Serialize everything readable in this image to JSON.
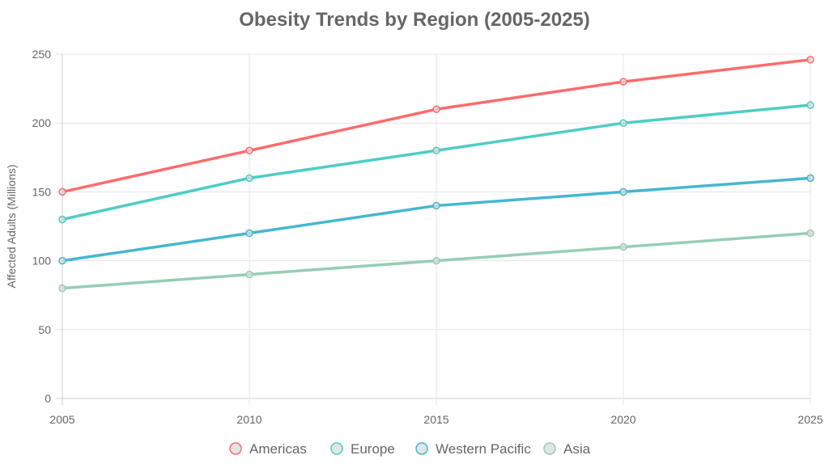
{
  "chart_data": {
    "type": "line",
    "title": "Obesity Trends by Region (2005-2025)",
    "xlabel": "",
    "ylabel": "Affected Adults (Millions)",
    "x": [
      2005,
      2010,
      2015,
      2020,
      2025
    ],
    "x_tick_labels": [
      "2005",
      "2010",
      "2015",
      "2020",
      "2025"
    ],
    "ylim": [
      0,
      250
    ],
    "y_ticks": [
      0,
      50,
      100,
      150,
      200,
      250
    ],
    "y_tick_labels": [
      "0",
      "50",
      "100",
      "150",
      "200",
      "250"
    ],
    "grid": true,
    "legend_position": "bottom",
    "series": [
      {
        "name": "Americas",
        "color": "#ff6b6b",
        "values": [
          150,
          180,
          210,
          230,
          246
        ]
      },
      {
        "name": "Europe",
        "color": "#4ecdc4",
        "values": [
          130,
          160,
          180,
          200,
          213
        ]
      },
      {
        "name": "Western Pacific",
        "color": "#45b7d1",
        "values": [
          100,
          120,
          140,
          150,
          160
        ]
      },
      {
        "name": "Asia",
        "color": "#96ceb4",
        "values": [
          80,
          90,
          100,
          110,
          120
        ]
      }
    ]
  }
}
